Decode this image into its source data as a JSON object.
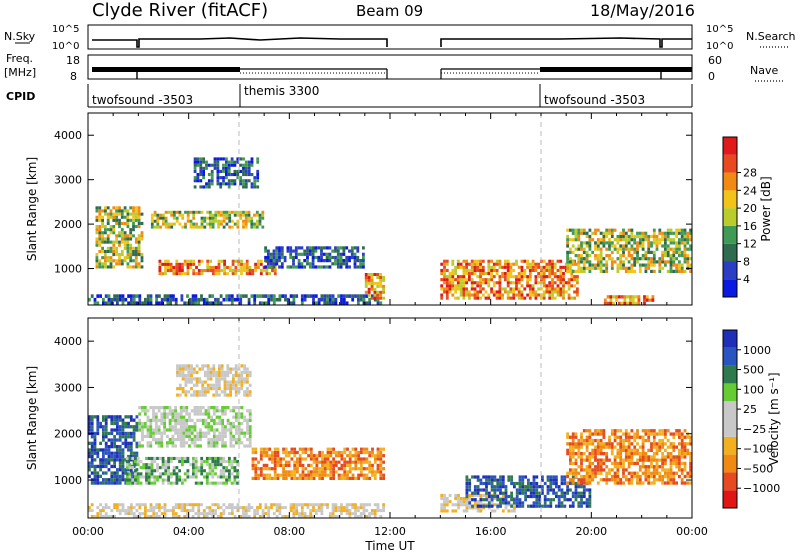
{
  "header": {
    "station": "Clyde River (fitACF)",
    "beam": "Beam 09",
    "date": "18/May/2016"
  },
  "strips": {
    "nsky_label": "N.Sky",
    "nsearch_label": "N.Search",
    "freq_label_1": "Freq.",
    "freq_label_2": "[MHz]",
    "nave_label": "Nave",
    "cpid_label": "CPID",
    "left_top_tick": "10^5",
    "left_bottom_tick": "10^0",
    "right_top_tick": "10^5",
    "right_bottom_tick": "10^0",
    "freq_ticks": [
      "18",
      "8"
    ],
    "nave_ticks": [
      "60",
      "0"
    ],
    "cpid_segments": [
      {
        "label": "twofsound -3503",
        "start_hour": 0
      },
      {
        "label": "themis 3300",
        "start_hour": 6
      },
      {
        "label": "twofsound -3503",
        "start_hour": 18
      }
    ]
  },
  "colors": {
    "frame": "#000000",
    "dashed": "#bbbbbb",
    "power_scale": [
      "#0b1ae0",
      "#2b3fc4",
      "#2f6b4f",
      "#3f9a55",
      "#b9cc2c",
      "#f2c41a",
      "#f08a12",
      "#e8491f",
      "#e01a1a"
    ],
    "velocity_scale": [
      "#1e2fb8",
      "#2a55c0",
      "#2e7a4e",
      "#66cc33",
      "#c8c8c8",
      "#c8c8c8",
      "#f2b020",
      "#f08a12",
      "#e64a1e",
      "#e01616"
    ]
  },
  "chart_data": [
    {
      "type": "heatmap",
      "title": "",
      "xlabel": "Time UT",
      "ylabel": "Slant Range [km]",
      "xlim": [
        0,
        24
      ],
      "ylim": [
        180,
        4500
      ],
      "xticks": [
        "00:00",
        "04:00",
        "08:00",
        "12:00",
        "16:00",
        "20:00",
        "00:00"
      ],
      "yticks": [
        1000,
        2000,
        3000,
        4000
      ],
      "colorbar_label": "Power [dB]",
      "colorbar_ticks": [
        "4",
        "8",
        "12",
        "16",
        "20",
        "24",
        "28"
      ],
      "data_gap_hours": [
        12,
        14
      ],
      "cpid_change_hours": [
        6,
        18
      ],
      "echo_regions": [
        {
          "t0": 0.0,
          "t1": 11.8,
          "r0": 180,
          "r1": 420,
          "level": "low"
        },
        {
          "t0": 0.3,
          "t1": 2.2,
          "r0": 1000,
          "r1": 2400,
          "level": "medium"
        },
        {
          "t0": 2.8,
          "t1": 7.5,
          "r0": 850,
          "r1": 1200,
          "level": "high"
        },
        {
          "t0": 2.5,
          "t1": 7.0,
          "r0": 1900,
          "r1": 2300,
          "level": "medium"
        },
        {
          "t0": 4.2,
          "t1": 6.8,
          "r0": 2800,
          "r1": 3500,
          "level": "low"
        },
        {
          "t0": 7.0,
          "t1": 11.0,
          "r0": 1000,
          "r1": 1500,
          "level": "low"
        },
        {
          "t0": 11.0,
          "t1": 11.8,
          "r0": 300,
          "r1": 900,
          "level": "high"
        },
        {
          "t0": 14.0,
          "t1": 19.5,
          "r0": 300,
          "r1": 1200,
          "level": "high"
        },
        {
          "t0": 19.0,
          "t1": 24.0,
          "r0": 900,
          "r1": 1900,
          "level": "medium"
        },
        {
          "t0": 20.5,
          "t1": 22.5,
          "r0": 180,
          "r1": 400,
          "level": "high"
        }
      ]
    },
    {
      "type": "heatmap",
      "title": "",
      "xlabel": "Time UT",
      "ylabel": "Slant Range [km]",
      "xlim": [
        0,
        24
      ],
      "ylim": [
        180,
        4500
      ],
      "xticks": [
        "00:00",
        "04:00",
        "08:00",
        "12:00",
        "16:00",
        "20:00",
        "00:00"
      ],
      "yticks": [
        1000,
        2000,
        3000,
        4000
      ],
      "colorbar_label": "Velocity [m s⁻¹]",
      "colorbar_ticks": [
        "1000",
        "500",
        "100",
        "25",
        "−25",
        "−100",
        "−500",
        "−1000"
      ],
      "data_gap_hours": [
        12,
        14
      ],
      "cpid_change_hours": [
        6,
        18
      ],
      "echo_regions": [
        {
          "t0": 0.0,
          "t1": 2.0,
          "r0": 900,
          "r1": 2400,
          "level": "positive"
        },
        {
          "t0": 2.0,
          "t1": 6.5,
          "r0": 1700,
          "r1": 2600,
          "level": "neutral"
        },
        {
          "t0": 1.5,
          "t1": 6.0,
          "r0": 900,
          "r1": 1500,
          "level": "weak_positive"
        },
        {
          "t0": 3.5,
          "t1": 6.5,
          "r0": 2800,
          "r1": 3500,
          "level": "weak_negative"
        },
        {
          "t0": 6.5,
          "t1": 11.8,
          "r0": 1000,
          "r1": 1700,
          "level": "negative"
        },
        {
          "t0": 0.0,
          "t1": 11.8,
          "r0": 180,
          "r1": 500,
          "level": "weak_negative"
        },
        {
          "t0": 14.0,
          "t1": 17.0,
          "r0": 300,
          "r1": 700,
          "level": "weak_negative"
        },
        {
          "t0": 15.0,
          "t1": 20.0,
          "r0": 400,
          "r1": 1100,
          "level": "positive"
        },
        {
          "t0": 19.0,
          "t1": 24.0,
          "r0": 900,
          "r1": 2100,
          "level": "negative"
        }
      ]
    }
  ]
}
